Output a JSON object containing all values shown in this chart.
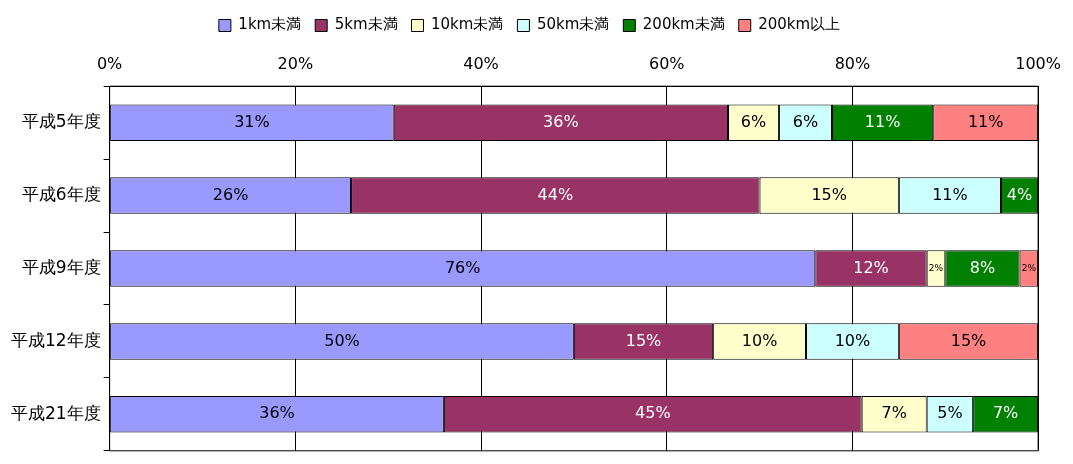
{
  "chart_data": {
    "type": "bar",
    "orientation": "horizontal",
    "stacked": true,
    "categories": [
      "平成5年度",
      "平成6年度",
      "平成9年度",
      "平成12年度",
      "平成21年度"
    ],
    "series": [
      {
        "name": "1km未満",
        "color": "#9999ff",
        "values": [
          30.6,
          26,
          76,
          50,
          36
        ],
        "value_labels": [
          "31%",
          "26%",
          "76%",
          "50%",
          "36%"
        ]
      },
      {
        "name": "5km未満",
        "color": "#993366",
        "values": [
          36,
          44,
          12,
          15,
          45
        ],
        "value_labels": [
          "36%",
          "44%",
          "12%",
          "15%",
          "45%"
        ]
      },
      {
        "name": "10km未満",
        "color": "#ffffcc",
        "values": [
          5.5,
          15,
          2,
          10,
          7
        ],
        "value_labels": [
          "6%",
          "15%",
          "2%",
          "10%",
          "7%"
        ]
      },
      {
        "name": "50km未満",
        "color": "#ccffff",
        "values": [
          5.7,
          11,
          0,
          10,
          5
        ],
        "value_labels": [
          "6%",
          "11%",
          null,
          "10%",
          "5%"
        ]
      },
      {
        "name": "200km未満",
        "color": "#008000",
        "values": [
          10.9,
          4,
          8,
          0,
          7
        ],
        "value_labels": [
          "11%",
          "4%",
          "8%",
          null,
          "7%"
        ]
      },
      {
        "name": "200km以上",
        "color": "#ff8080",
        "values": [
          11.3,
          0,
          2,
          15,
          0
        ],
        "value_labels": [
          "11%",
          null,
          "2%",
          "15%",
          null
        ]
      }
    ],
    "xlim": [
      0,
      100
    ],
    "xticks": [
      {
        "value": 0,
        "label": "0%"
      },
      {
        "value": 20,
        "label": "20%"
      },
      {
        "value": 40,
        "label": "40%"
      },
      {
        "value": 60,
        "label": "60%"
      },
      {
        "value": 80,
        "label": "80%"
      },
      {
        "value": 100,
        "label": "100%"
      }
    ],
    "grid": "x",
    "legend": "top"
  }
}
